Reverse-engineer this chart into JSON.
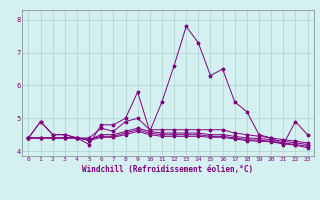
{
  "title": "",
  "xlabel": "Windchill (Refroidissement éolien,°C)",
  "ylabel": "",
  "background_color": "#d4f0f0",
  "line_color": "#800080",
  "grid_color": "#afd8d8",
  "xlim": [
    -0.5,
    23.5
  ],
  "ylim": [
    3.85,
    8.3
  ],
  "yticks": [
    4,
    5,
    6,
    7,
    8
  ],
  "xticks": [
    0,
    1,
    2,
    3,
    4,
    5,
    6,
    7,
    8,
    9,
    10,
    11,
    12,
    13,
    14,
    15,
    16,
    17,
    18,
    19,
    20,
    21,
    22,
    23
  ],
  "series": [
    [
      4.4,
      4.9,
      4.5,
      4.5,
      4.4,
      4.2,
      4.8,
      4.8,
      5.0,
      5.8,
      4.6,
      5.5,
      6.6,
      7.8,
      7.3,
      6.3,
      6.5,
      5.5,
      5.2,
      4.5,
      4.4,
      4.2,
      4.9,
      4.5
    ],
    [
      4.4,
      4.9,
      4.5,
      4.5,
      4.4,
      4.4,
      4.7,
      4.6,
      4.9,
      5.0,
      4.65,
      4.65,
      4.65,
      4.65,
      4.65,
      4.65,
      4.65,
      4.55,
      4.5,
      4.45,
      4.4,
      4.35,
      4.3,
      4.25
    ],
    [
      4.4,
      4.4,
      4.4,
      4.4,
      4.4,
      4.35,
      4.5,
      4.5,
      4.6,
      4.7,
      4.6,
      4.55,
      4.55,
      4.55,
      4.55,
      4.5,
      4.5,
      4.45,
      4.4,
      4.38,
      4.35,
      4.3,
      4.25,
      4.2
    ],
    [
      4.4,
      4.4,
      4.4,
      4.4,
      4.4,
      4.35,
      4.45,
      4.45,
      4.55,
      4.65,
      4.55,
      4.5,
      4.5,
      4.5,
      4.5,
      4.45,
      4.45,
      4.4,
      4.35,
      4.33,
      4.3,
      4.25,
      4.2,
      4.15
    ],
    [
      4.4,
      4.4,
      4.4,
      4.4,
      4.4,
      4.32,
      4.42,
      4.42,
      4.5,
      4.6,
      4.5,
      4.45,
      4.45,
      4.45,
      4.45,
      4.42,
      4.42,
      4.37,
      4.32,
      4.3,
      4.28,
      4.22,
      4.18,
      4.1
    ]
  ],
  "figsize": [
    3.2,
    2.0
  ],
  "dpi": 100
}
